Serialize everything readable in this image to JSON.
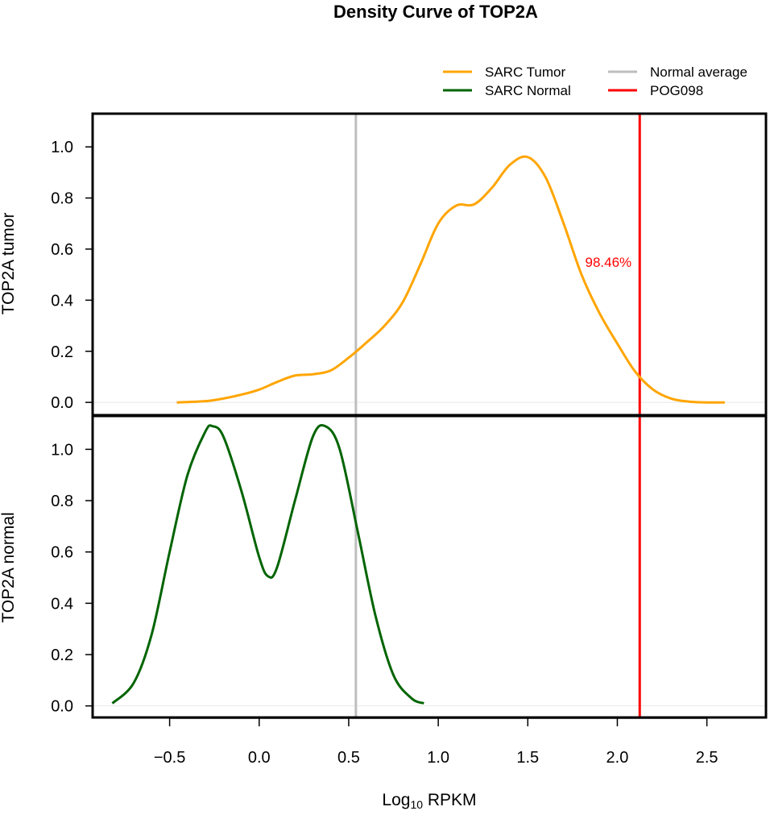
{
  "chart_data": [
    {
      "type": "line",
      "title": "Density Curve of  TOP2A",
      "ylabel": "TOP2A  tumor",
      "xlim": [
        -0.93,
        2.83
      ],
      "ylim": [
        -0.05,
        1.13
      ],
      "y_ticks": [
        0.0,
        0.2,
        0.4,
        0.6,
        0.8,
        1.0
      ],
      "y_tick_labels": [
        "0.0",
        "0.2",
        "0.4",
        "0.6",
        "0.8",
        "1.0"
      ],
      "grid": false,
      "series": [
        {
          "name": "SARC  Tumor",
          "color": "#FFA500",
          "x": [
            -0.46,
            -0.3,
            -0.2,
            -0.1,
            0.0,
            0.1,
            0.2,
            0.3,
            0.4,
            0.5,
            0.6,
            0.7,
            0.8,
            0.9,
            1.0,
            1.1,
            1.2,
            1.3,
            1.4,
            1.5,
            1.6,
            1.7,
            1.8,
            1.9,
            2.0,
            2.1,
            2.2,
            2.3,
            2.4,
            2.5,
            2.6
          ],
          "values": [
            0.0,
            0.005,
            0.015,
            0.03,
            0.05,
            0.08,
            0.105,
            0.11,
            0.125,
            0.175,
            0.235,
            0.3,
            0.39,
            0.54,
            0.7,
            0.77,
            0.775,
            0.84,
            0.93,
            0.96,
            0.88,
            0.7,
            0.5,
            0.35,
            0.23,
            0.12,
            0.05,
            0.015,
            0.003,
            0.0,
            0.0
          ]
        }
      ],
      "vlines": [
        {
          "name": "Normal  average",
          "x": 0.54,
          "color": "#BEBEBE"
        },
        {
          "name": "POG098",
          "x": 2.125,
          "color": "#FF0000"
        }
      ],
      "annotations": [
        {
          "text": "98.46%",
          "x": 1.95,
          "y": 0.55,
          "color": "#FF0000"
        }
      ]
    },
    {
      "type": "line",
      "ylabel": "TOP2A  normal",
      "xlabel_prefix": "Log",
      "xlabel_sub": "10",
      "xlabel_suffix": " RPKM",
      "xlim": [
        -0.93,
        2.83
      ],
      "ylim": [
        -0.045,
        1.13
      ],
      "x_ticks": [
        -0.5,
        0.0,
        0.5,
        1.0,
        1.5,
        2.0,
        2.5
      ],
      "x_tick_labels": [
        "−0.5",
        "0.0",
        "0.5",
        "1.0",
        "1.5",
        "2.0",
        "2.5"
      ],
      "y_ticks": [
        0.0,
        0.2,
        0.4,
        0.6,
        0.8,
        1.0
      ],
      "y_tick_labels": [
        "0.0",
        "0.2",
        "0.4",
        "0.6",
        "0.8",
        "1.0"
      ],
      "grid": false,
      "series": [
        {
          "name": "SARC  Normal",
          "color": "#006400",
          "x": [
            -0.82,
            -0.7,
            -0.6,
            -0.5,
            -0.4,
            -0.3,
            -0.26,
            -0.2,
            -0.1,
            0.0,
            0.05,
            0.1,
            0.2,
            0.3,
            0.37,
            0.45,
            0.55,
            0.65,
            0.75,
            0.85,
            0.92
          ],
          "values": [
            0.01,
            0.09,
            0.28,
            0.6,
            0.9,
            1.07,
            1.09,
            1.05,
            0.84,
            0.58,
            0.505,
            0.54,
            0.8,
            1.05,
            1.09,
            1.0,
            0.68,
            0.35,
            0.12,
            0.03,
            0.01
          ]
        }
      ],
      "vlines": [
        {
          "name": "Normal  average",
          "x": 0.54,
          "color": "#BEBEBE"
        },
        {
          "name": "POG098",
          "x": 2.125,
          "color": "#FF0000"
        }
      ]
    }
  ],
  "legend": {
    "placement": "top-right",
    "entries": [
      {
        "label": "SARC  Tumor",
        "color": "#FFA500"
      },
      {
        "label": "SARC  Normal",
        "color": "#006400"
      },
      {
        "label": "Normal  average",
        "color": "#BEBEBE"
      },
      {
        "label": "POG098",
        "color": "#FF0000"
      }
    ]
  }
}
